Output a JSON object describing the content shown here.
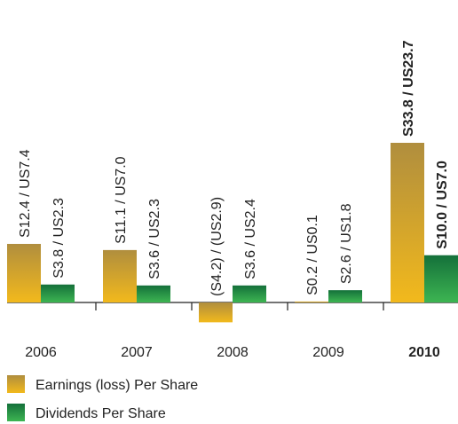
{
  "chart_data": {
    "type": "bar",
    "categories": [
      "2006",
      "2007",
      "2008",
      "2009",
      "2010"
    ],
    "series": [
      {
        "name": "Earnings (loss) Per Share",
        "color": "#d9a92a",
        "values": [
          12.4,
          11.1,
          -4.2,
          0.2,
          33.8
        ],
        "value_labels": [
          "S12.4 / US7.4",
          "S11.1 / US7.0",
          "(S4.2) / (US2.9)",
          "S0.2 / US0.1",
          "S33.8 / US23.7"
        ]
      },
      {
        "name": "Dividends Per Share",
        "color": "#239a45",
        "values": [
          3.8,
          3.6,
          3.6,
          2.6,
          10.0
        ],
        "value_labels": [
          "S3.8 / US2.3",
          "S3.6 / US2.3",
          "S3.6 / US2.4",
          "S2.6 / US1.8",
          "S10.0 / US7.0"
        ]
      }
    ]
  }
}
